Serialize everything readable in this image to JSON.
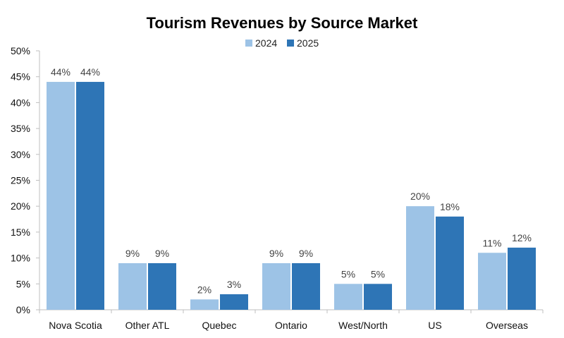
{
  "chart_data": {
    "type": "bar",
    "title": "Tourism Revenues by Source Market",
    "categories": [
      "Nova Scotia",
      "Other ATL",
      "Quebec",
      "Ontario",
      "West/North",
      "US",
      "Overseas"
    ],
    "series": [
      {
        "name": "2024",
        "values": [
          44,
          9,
          2,
          9,
          5,
          20,
          11
        ],
        "labels": [
          "44%",
          "9%",
          "2%",
          "9%",
          "5%",
          "20%",
          "11%"
        ],
        "color": "#9DC3E6"
      },
      {
        "name": "2025",
        "values": [
          44,
          9,
          3,
          9,
          5,
          18,
          12
        ],
        "labels": [
          "44%",
          "9%",
          "3%",
          "9%",
          "5%",
          "18%",
          "12%"
        ],
        "color": "#2E75B6"
      }
    ],
    "ylim": [
      0,
      50
    ],
    "yticks": [
      0,
      5,
      10,
      15,
      20,
      25,
      30,
      35,
      40,
      45,
      50
    ],
    "ytick_labels": [
      "0%",
      "5%",
      "10%",
      "15%",
      "20%",
      "25%",
      "30%",
      "35%",
      "40%",
      "45%",
      "50%"
    ],
    "xlabel": "",
    "ylabel": "",
    "grid": false,
    "legend_position": "top-center"
  }
}
